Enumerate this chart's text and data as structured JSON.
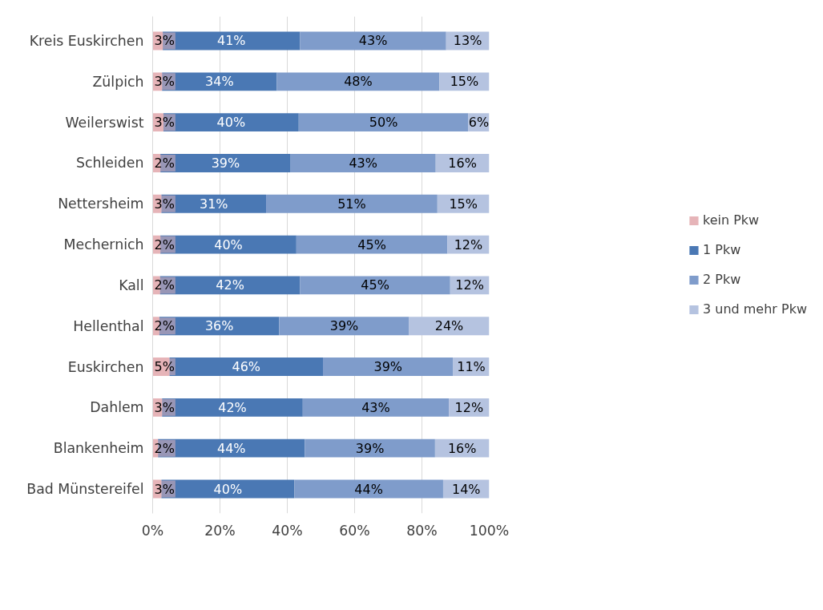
{
  "chart_data": {
    "type": "bar",
    "orientation": "horizontal",
    "stacked": true,
    "categories": [
      "Kreis Euskirchen",
      "Zülpich",
      "Weilerswist",
      "Schleiden",
      "Nettersheim",
      "Mechernich",
      "Kall",
      "Hellenthal",
      "Euskirchen",
      "Dahlem",
      "Blankenheim",
      "Bad Münstereifel"
    ],
    "series": [
      {
        "name": "kein Pkw",
        "color": "#e6b4b8",
        "values": [
          3.0,
          2.8,
          3.2,
          2.3,
          2.6,
          2.3,
          2.2,
          2.0,
          5.0,
          2.8,
          1.6,
          2.6
        ],
        "value_labels": [
          "3%",
          "3%",
          "3%",
          "2%",
          "3%",
          "2%",
          "2%",
          "2%",
          "5%",
          "3%",
          "2%",
          "3%"
        ]
      },
      {
        "name": "1 Pkw",
        "color": "#4a78b4",
        "values": [
          40.8,
          34.1,
          40.2,
          38.7,
          31.1,
          40.4,
          41.6,
          35.6,
          45.6,
          41.8,
          43.6,
          39.5
        ],
        "value_labels": [
          "41%",
          "34%",
          "40%",
          "39%",
          "31%",
          "40%",
          "42%",
          "36%",
          "46%",
          "42%",
          "44%",
          "40%"
        ]
      },
      {
        "name": "2 Pkw",
        "color": "#7f9ccb",
        "values": [
          43.4,
          48.3,
          50.4,
          43.1,
          50.9,
          44.9,
          44.6,
          38.6,
          38.7,
          43.4,
          38.7,
          44.2
        ],
        "value_labels": [
          "43%",
          "48%",
          "50%",
          "43%",
          "51%",
          "45%",
          "45%",
          "39%",
          "39%",
          "43%",
          "39%",
          "44%"
        ]
      },
      {
        "name": "3 und mehr Pkw",
        "color": "#b5c3e0",
        "values": [
          12.8,
          14.8,
          6.2,
          15.9,
          15.4,
          12.4,
          11.6,
          23.8,
          10.7,
          12.0,
          16.1,
          13.7
        ],
        "value_labels": [
          "13%",
          "15%",
          "6%",
          "16%",
          "15%",
          "12%",
          "12%",
          "24%",
          "11%",
          "12%",
          "16%",
          "14%"
        ]
      }
    ],
    "xlim": [
      0,
      100
    ],
    "xticks": [
      {
        "value": 0,
        "label": "0%"
      },
      {
        "value": 20,
        "label": "20%"
      },
      {
        "value": 40,
        "label": "40%"
      },
      {
        "value": 60,
        "label": "60%"
      },
      {
        "value": 80,
        "label": "80%"
      },
      {
        "value": 100,
        "label": "100%"
      }
    ],
    "grid": "x",
    "legend": "right"
  }
}
